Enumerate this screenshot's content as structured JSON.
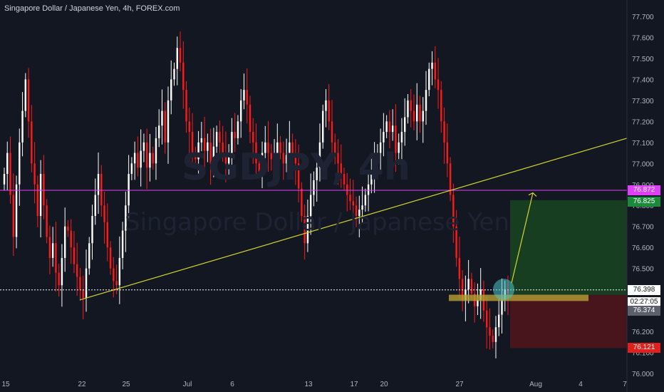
{
  "title": "Singapore Dollar / Japanese Yen, 4h, FOREX.com",
  "watermark": {
    "symbol": "SGDJPY, 4h",
    "name": "Singapore Dollar / Japanese Yen"
  },
  "colors": {
    "background": "#131722",
    "up": "#ffffff",
    "down": "#ff1a1a",
    "trendline": "#d4d430",
    "resistance": "#e040fb",
    "profit_zone": "#1b5e20",
    "loss_zone": "#6b1418",
    "support_zone": "#b5a035",
    "arrow": "#d4d430",
    "circle": "#4fc3c9"
  },
  "axis": {
    "y_ticks": [
      "77.700",
      "77.600",
      "77.500",
      "77.400",
      "77.300",
      "77.200",
      "77.100",
      "77.000",
      "76.900",
      "76.800",
      "76.700",
      "76.600",
      "76.500",
      "76.400",
      "76.300",
      "76.200",
      "76.100",
      "76.000"
    ],
    "x_ticks": [
      "15",
      "22",
      "25",
      "Jul",
      "6",
      "13",
      "17",
      "20",
      "27",
      "Aug",
      "4",
      "7"
    ]
  },
  "price_tags": {
    "resistance": "76.872",
    "target": "76.825",
    "current": "76.398",
    "countdown": "02:27:05",
    "entry": "76.374",
    "stop": "76.121"
  },
  "chart_data": {
    "type": "candlestick",
    "symbol": "SGDJPY",
    "timeframe": "4h",
    "ylim": [
      76.0,
      77.75
    ],
    "grid": false,
    "horizontal_line": 76.872,
    "last_price": 76.398,
    "trendline": {
      "from": [
        "22",
        76.35
      ],
      "to": [
        "7",
        77.12
      ]
    },
    "support_zone": [
      76.345,
      76.375
    ],
    "position": {
      "target": 76.825,
      "entry": 76.374,
      "stop": 76.121
    },
    "candle_x_range": [
      "15",
      "29"
    ],
    "closes": [
      76.95,
      77.05,
      76.85,
      76.65,
      76.9,
      77.1,
      77.25,
      77.4,
      77.2,
      77.0,
      76.9,
      76.75,
      76.95,
      76.8,
      76.65,
      76.55,
      76.62,
      76.48,
      76.42,
      76.55,
      76.7,
      76.68,
      76.6,
      76.52,
      76.46,
      76.4,
      76.36,
      76.5,
      76.62,
      76.75,
      76.85,
      76.95,
      76.8,
      76.72,
      76.6,
      76.5,
      76.44,
      76.42,
      76.55,
      76.68,
      76.8,
      76.95,
      77.0,
      77.05,
      76.98,
      77.06,
      77.1,
      76.98,
      77.05,
      77.0,
      77.12,
      77.18,
      77.25,
      77.1,
      77.3,
      77.4,
      77.45,
      77.55,
      77.48,
      77.35,
      77.2,
      77.15,
      77.05,
      77.02,
      77.1,
      77.12,
      77.06,
      77.1,
      77.0,
      77.08,
      77.15,
      77.1,
      77.05,
      77.0,
      77.05,
      77.15,
      77.12,
      77.2,
      77.3,
      77.35,
      77.28,
      77.15,
      77.1,
      77.0,
      76.96,
      77.05,
      77.1,
      77.05,
      77.02,
      77.05,
      77.1,
      77.05,
      77.0,
      77.04,
      77.1,
      77.05,
      77.0,
      76.88,
      76.75,
      76.62,
      76.75,
      76.85,
      76.92,
      76.98,
      77.1,
      77.25,
      77.3,
      77.2,
      77.1,
      77.05,
      77.0,
      76.95,
      76.9,
      76.85,
      76.82,
      76.8,
      76.75,
      76.78,
      76.8,
      76.85,
      76.9,
      76.95,
      77.0,
      77.05,
      77.1,
      77.15,
      77.2,
      77.15,
      77.18,
      77.05,
      77.1,
      77.15,
      77.22,
      77.3,
      77.25,
      77.2,
      77.28,
      77.2,
      77.25,
      77.35,
      77.45,
      77.48,
      77.4,
      77.35,
      77.2,
      77.1,
      77.0,
      76.85,
      76.7,
      76.55,
      76.45,
      76.35,
      76.4,
      76.45,
      76.38,
      76.32,
      76.35,
      76.4,
      76.3,
      76.22,
      76.18,
      76.15,
      76.22,
      76.28,
      76.35,
      76.4,
      76.38
    ]
  }
}
